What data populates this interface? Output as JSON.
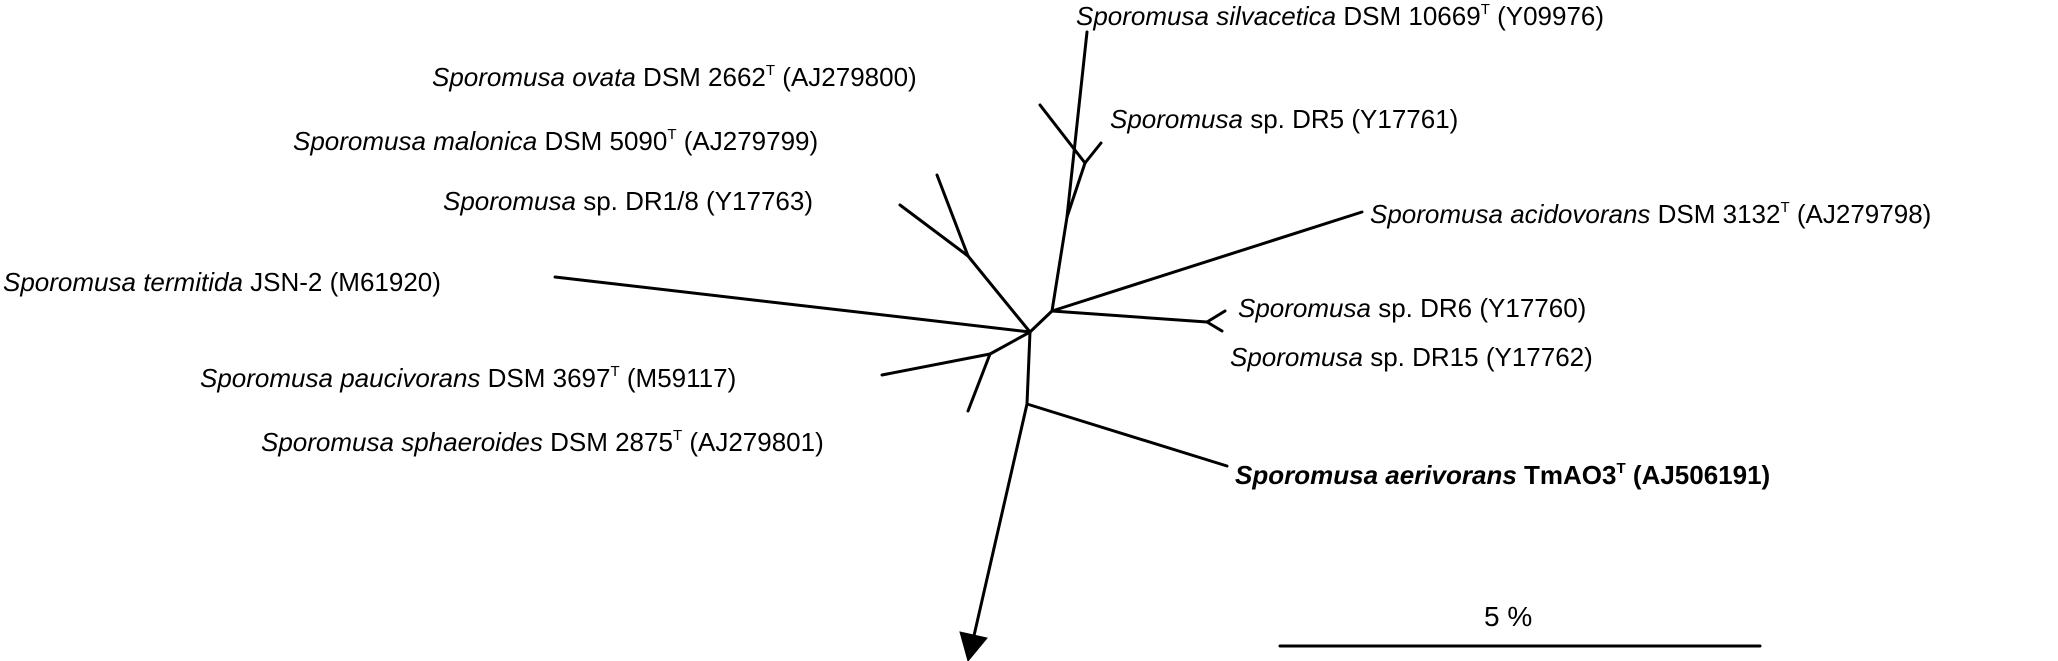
{
  "taxa": [
    {
      "id": "silvacetica",
      "genus": "Sporomusa",
      "epithet": "silvacetica",
      "strain": "DSM 10669",
      "type_strain": true,
      "accession": "(Y09976)",
      "bold": false
    },
    {
      "id": "ovata",
      "genus": "Sporomusa",
      "epithet": "ovata",
      "strain": "DSM 2662",
      "type_strain": true,
      "accession": "(AJ279800)",
      "bold": false
    },
    {
      "id": "dr5",
      "genus": "Sporomusa",
      "epithet": "",
      "strain": "sp. DR5",
      "type_strain": false,
      "accession": "(Y17761)",
      "bold": false
    },
    {
      "id": "malonica",
      "genus": "Sporomusa",
      "epithet": "malonica",
      "strain": "DSM 5090",
      "type_strain": true,
      "accession": "(AJ279799)",
      "bold": false
    },
    {
      "id": "dr18",
      "genus": "Sporomusa",
      "epithet": "",
      "strain": "sp. DR1/8",
      "type_strain": false,
      "accession": "(Y17763)",
      "bold": false
    },
    {
      "id": "acidovorans",
      "genus": "Sporomusa",
      "epithet": "acidovorans",
      "strain": "DSM 3132",
      "type_strain": true,
      "accession": "(AJ279798)",
      "bold": false
    },
    {
      "id": "termitida",
      "genus": "Sporomusa",
      "epithet": "termitida",
      "strain": "JSN-2",
      "type_strain": false,
      "accession": "(M61920)",
      "bold": false
    },
    {
      "id": "dr6",
      "genus": "Sporomusa",
      "epithet": "",
      "strain": "sp. DR6",
      "type_strain": false,
      "accession": "(Y17760)",
      "bold": false
    },
    {
      "id": "dr15",
      "genus": "Sporomusa",
      "epithet": "",
      "strain": "sp. DR15",
      "type_strain": false,
      "accession": "(Y17762)",
      "bold": false
    },
    {
      "id": "paucivorans",
      "genus": "Sporomusa",
      "epithet": "paucivorans",
      "strain": "DSM 3697",
      "type_strain": true,
      "accession": "(M59117)",
      "bold": false
    },
    {
      "id": "sphaeroides",
      "genus": "Sporomusa",
      "epithet": "sphaeroides",
      "strain": "DSM 2875",
      "type_strain": true,
      "accession": "(AJ279801)",
      "bold": false
    },
    {
      "id": "aerivorans",
      "genus": "Sporomusa",
      "epithet": "aerivorans",
      "strain": "TmAO3",
      "type_strain": true,
      "accession": "(AJ506191)",
      "bold": true
    }
  ],
  "type_marker": "T",
  "scale_bar": {
    "label": "5 %",
    "value_percent": 5
  },
  "line_color": "#000000"
}
